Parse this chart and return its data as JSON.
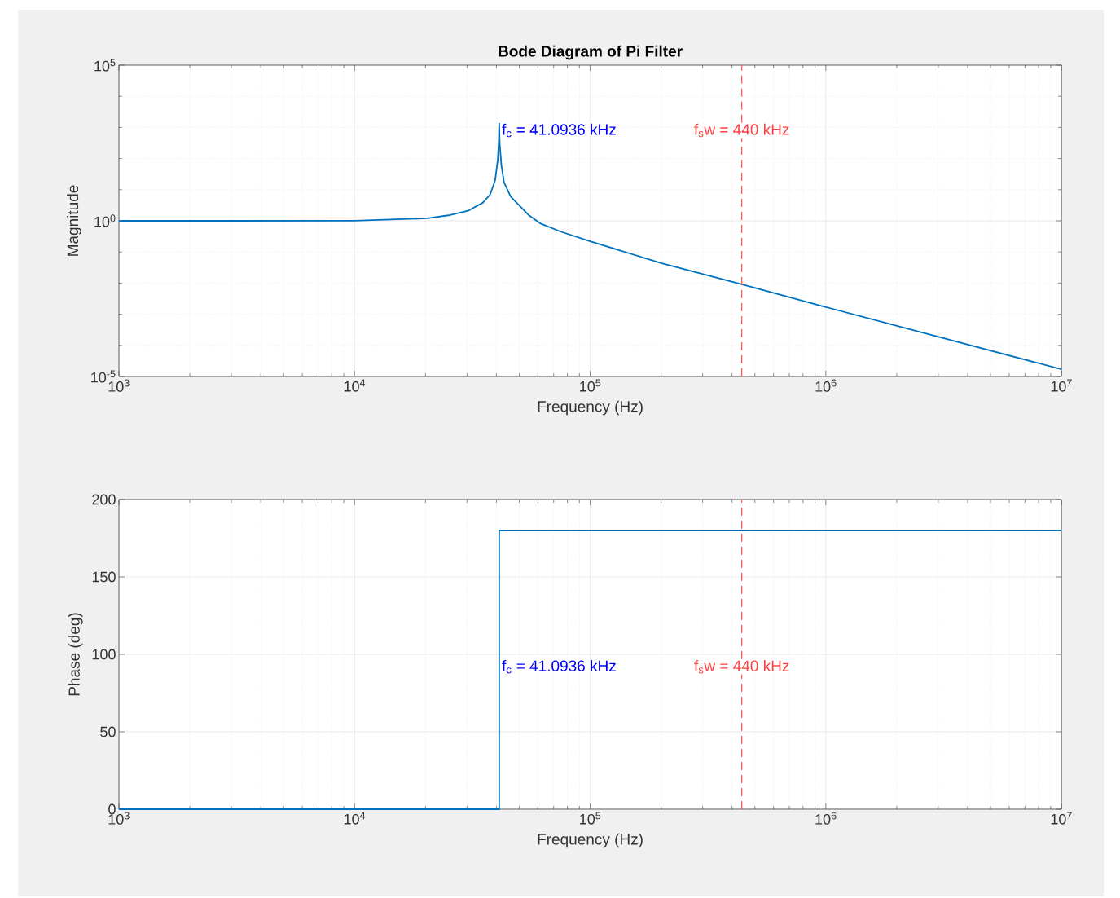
{
  "chart_data": [
    {
      "type": "line",
      "title": "Bode Diagram of Pi Filter",
      "xlabel": "Frequency (Hz)",
      "ylabel": "Magnitude",
      "log": "xy",
      "grid": true,
      "marker": "none",
      "xlim": [
        1000,
        10000000
      ],
      "ylim": [
        1e-05,
        100000
      ],
      "xticks": [
        {
          "value": 1000,
          "label": "10$^{3}$"
        },
        {
          "value": 10000,
          "label": "10$^{4}$"
        },
        {
          "value": 100000,
          "label": "10$^{5}$"
        },
        {
          "value": 1000000,
          "label": "10$^{6}$"
        },
        {
          "value": 10000000,
          "label": "10$^{7}$"
        }
      ],
      "yticks": [
        {
          "value": 1e-05,
          "label": "10$^{-5}$"
        },
        {
          "value": 1,
          "label": "10$^{0}$"
        },
        {
          "value": 100000,
          "label": "10$^{5}$"
        }
      ],
      "series": [
        {
          "color": "#0072bd",
          "x": [
            1000,
            3000,
            10000,
            20400,
            25000,
            30300,
            35000,
            37600,
            39500,
            40500,
            40900,
            41093.6,
            41300,
            42000,
            43100,
            46000,
            51000,
            55000,
            61300,
            75000,
            100000,
            200000,
            440000,
            1000000,
            10000000
          ],
          "values": [
            1.0,
            1.0,
            1.01,
            1.2,
            1.5,
            2.1,
            3.8,
            6.9,
            20,
            87,
            300,
            1350,
            300,
            60,
            17,
            6,
            2.7,
            1.5,
            0.83,
            0.45,
            0.22,
            0.044,
            0.0091,
            0.0017,
            1.7e-05
          ]
        }
      ],
      "ref_lines": [
        {
          "axis": "x",
          "value": 440000,
          "color": "#ff4040",
          "line_style": "dashed"
        }
      ],
      "annotations": [
        {
          "text": "f$_{c}$ = 41.0936 kHz",
          "x": 41093.6,
          "y": 800
        },
        "f$_{s}$w = 440 kHz"
      ]
    },
    {
      "type": "line",
      "xlabel": "Frequency (Hz)",
      "ylabel": "Phase (deg)",
      "log": "x",
      "grid": true,
      "marker": "none",
      "xlim": [
        1000,
        10000000
      ],
      "ylim": [
        0,
        200
      ],
      "xticks": [
        {
          "value": 1000,
          "label": "10$^{3}$"
        },
        {
          "value": 10000,
          "label": "10$^{4}$"
        },
        {
          "value": 100000,
          "label": "10$^{5}$"
        },
        {
          "value": 1000000,
          "label": "10$^{6}$"
        },
        {
          "value": 10000000,
          "label": "10$^{7}$"
        }
      ],
      "yticks": [
        {
          "value": 0,
          "label": "0"
        },
        50,
        100,
        150,
        200
      ],
      "series": [
        {
          "color": "#0072bd",
          "x": [
            1000,
            41093.6,
            41093.6,
            10000000
          ],
          "values": [
            0,
            0,
            180,
            180
          ]
        }
      ],
      "ref_lines": [
        {
          "axis": "x",
          "value": 440000,
          "color": "#ff4040",
          "line_style": "dashed"
        }
      ],
      "annotations": [
        {
          "text": "f$_{c}$ = 41.0936 kHz",
          "x": 41093.6,
          "y": 92
        },
        "f$_{s}$w = 440 kHz"
      ]
    }
  ]
}
